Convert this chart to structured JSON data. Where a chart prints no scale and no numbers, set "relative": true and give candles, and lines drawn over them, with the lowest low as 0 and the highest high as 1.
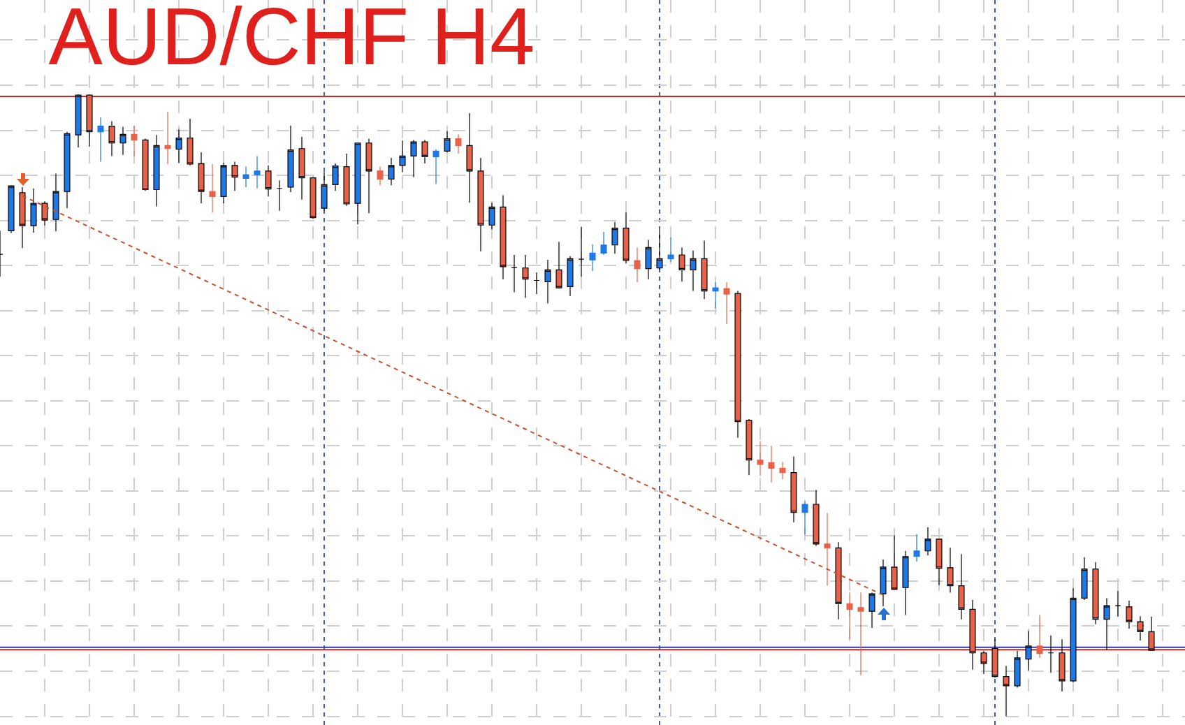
{
  "chart_data": {
    "type": "candlestick",
    "title": "AUD/CHF H4",
    "relative": true,
    "grid": true,
    "categories": [
      null,
      null,
      null,
      null,
      null,
      null,
      null,
      null,
      null,
      null,
      null,
      null,
      null,
      null,
      null,
      null,
      null,
      null,
      null,
      null,
      null,
      null,
      null,
      null,
      null,
      null,
      null,
      null,
      null,
      null,
      null,
      null,
      null,
      null,
      null,
      null,
      null,
      null,
      null,
      null,
      null,
      null,
      null,
      null,
      null,
      null,
      null,
      null,
      null,
      null,
      null,
      null,
      null,
      null,
      null,
      null,
      null,
      null,
      null,
      null,
      null,
      null,
      null,
      null,
      null,
      null,
      null,
      null,
      null,
      null,
      null,
      null,
      null,
      null,
      null,
      null,
      null,
      null,
      null,
      null,
      null,
      null,
      null,
      null,
      null,
      null,
      null,
      null,
      null,
      null,
      null,
      null,
      null,
      null,
      null,
      null,
      null,
      null,
      null,
      null,
      null,
      null,
      null,
      null
    ],
    "ohlc": [
      [
        0.743,
        0.781,
        0.707,
        0.743
      ],
      [
        0.781,
        0.854,
        0.777,
        0.853
      ],
      [
        0.842,
        0.851,
        0.753,
        0.789
      ],
      [
        0.789,
        0.849,
        0.778,
        0.825
      ],
      [
        0.825,
        0.828,
        0.789,
        0.798
      ],
      [
        0.799,
        0.873,
        0.78,
        0.844
      ],
      [
        0.844,
        0.94,
        0.817,
        0.937
      ],
      [
        0.935,
        1,
        0.915,
        0.999
      ],
      [
        0.999,
        1,
        0.916,
        0.94
      ],
      [
        0.94,
        0.963,
        0.892,
        0.949
      ],
      [
        0.949,
        0.957,
        0.901,
        0.922
      ],
      [
        0.922,
        0.948,
        0.903,
        0.936
      ],
      [
        0.936,
        0.95,
        0.901,
        0.927
      ],
      [
        0.927,
        0.929,
        0.845,
        0.847
      ],
      [
        0.847,
        0.935,
        0.82,
        0.918
      ],
      [
        0.918,
        0.972,
        0.888,
        0.913
      ],
      [
        0.912,
        0.944,
        0.89,
        0.93
      ],
      [
        0.93,
        0.961,
        0.886,
        0.888
      ],
      [
        0.889,
        0.907,
        0.825,
        0.844
      ],
      [
        0.844,
        0.888,
        0.81,
        0.836
      ],
      [
        0.836,
        0.89,
        0.825,
        0.886
      ],
      [
        0.886,
        0.892,
        0.845,
        0.867
      ],
      [
        0.865,
        0.884,
        0.851,
        0.871
      ],
      [
        0.871,
        0.901,
        0.849,
        0.877
      ],
      [
        0.877,
        0.886,
        0.836,
        0.848
      ],
      [
        0.849,
        0.862,
        0.813,
        0.849
      ],
      [
        0.851,
        0.95,
        0.843,
        0.911
      ],
      [
        0.913,
        0.932,
        0.831,
        0.866
      ],
      [
        0.866,
        0.867,
        0.8,
        0.802
      ],
      [
        0.817,
        0.875,
        0.813,
        0.855
      ],
      [
        0.855,
        0.889,
        0.845,
        0.885
      ],
      [
        0.884,
        0.905,
        0.821,
        0.824
      ],
      [
        0.825,
        0.922,
        0.791,
        0.922
      ],
      [
        0.922,
        0.929,
        0.809,
        0.877
      ],
      [
        0.877,
        0.884,
        0.854,
        0.864
      ],
      [
        0.864,
        0.898,
        0.854,
        0.886
      ],
      [
        0.886,
        0.926,
        0.875,
        0.901
      ],
      [
        0.901,
        0.927,
        0.867,
        0.924
      ],
      [
        0.924,
        0.927,
        0.889,
        0.9
      ],
      [
        0.9,
        0.912,
        0.856,
        0.909
      ],
      [
        0.909,
        0.941,
        0.907,
        0.929
      ],
      [
        0.929,
        0.936,
        0.905,
        0.918
      ],
      [
        0.918,
        0.97,
        0.826,
        0.877
      ],
      [
        0.877,
        0.898,
        0.748,
        0.79
      ],
      [
        0.79,
        0.826,
        0.783,
        0.819
      ],
      [
        0.819,
        0.838,
        0.703,
        0.723
      ],
      [
        0.722,
        0.742,
        0.682,
        0.722
      ],
      [
        0.721,
        0.742,
        0.673,
        0.703
      ],
      [
        0.701,
        0.714,
        0.679,
        0.701
      ],
      [
        0.699,
        0.734,
        0.664,
        0.718
      ],
      [
        0.718,
        0.763,
        0.688,
        0.689
      ],
      [
        0.691,
        0.74,
        0.676,
        0.736
      ],
      [
        0.735,
        0.787,
        0.707,
        0.735
      ],
      [
        0.734,
        0.759,
        0.716,
        0.745
      ],
      [
        0.745,
        0.779,
        0.742,
        0.758
      ],
      [
        0.758,
        0.795,
        0.744,
        0.785
      ],
      [
        0.785,
        0.81,
        0.729,
        0.733
      ],
      [
        0.733,
        0.754,
        0.698,
        0.72
      ],
      [
        0.72,
        0.766,
        0.703,
        0.754
      ],
      [
        0.721,
        0.781,
        0.718,
        0.736
      ],
      [
        0.736,
        0.77,
        0.731,
        0.742
      ],
      [
        0.742,
        0.754,
        0.699,
        0.718
      ],
      [
        0.718,
        0.749,
        0.684,
        0.736
      ],
      [
        0.736,
        0.765,
        0.671,
        0.684
      ],
      [
        0.684,
        0.698,
        0.656,
        0.689
      ],
      [
        0.688,
        0.698,
        0.631,
        0.679
      ],
      [
        0.68,
        0.684,
        0.448,
        0.474
      ],
      [
        0.476,
        0.478,
        0.388,
        0.412
      ],
      [
        0.412,
        0.442,
        0.387,
        0.405
      ],
      [
        0.408,
        0.435,
        0.376,
        0.399
      ],
      [
        0.399,
        0.409,
        0.381,
        0.392
      ],
      [
        0.392,
        0.418,
        0.312,
        0.328
      ],
      [
        0.328,
        0.347,
        0.292,
        0.341
      ],
      [
        0.341,
        0.364,
        0.274,
        0.277
      ],
      [
        0.277,
        0.327,
        0.21,
        0.271
      ],
      [
        0.271,
        0.28,
        0.156,
        0.181
      ],
      [
        0.181,
        0.199,
        0.124,
        0.172
      ],
      [
        0.175,
        0.199,
        0.066,
        0.169
      ],
      [
        0.169,
        0.199,
        0.142,
        0.197
      ],
      [
        0.197,
        0.252,
        0.177,
        0.24
      ],
      [
        0.24,
        0.291,
        0.204,
        0.204
      ],
      [
        0.207,
        0.266,
        0.163,
        0.257
      ],
      [
        0.257,
        0.293,
        0.249,
        0.266
      ],
      [
        0.266,
        0.304,
        0.259,
        0.285
      ],
      [
        0.285,
        0.285,
        0.211,
        0.238
      ],
      [
        0.239,
        0.271,
        0.199,
        0.21
      ],
      [
        0.21,
        0.261,
        0.156,
        0.172
      ],
      [
        0.172,
        0.187,
        0.075,
        0.102
      ],
      [
        0.102,
        0.105,
        0.068,
        0.085
      ],
      [
        0.109,
        0.124,
        0.062,
        0.064
      ],
      [
        0.064,
        0.081,
        0,
        0.049
      ],
      [
        0.049,
        0.105,
        0.046,
        0.094
      ],
      [
        0.092,
        0.137,
        0.073,
        0.113
      ],
      [
        0.113,
        0.163,
        0.094,
        0.101
      ],
      [
        0.102,
        0.13,
        0.07,
        0.102
      ],
      [
        0.102,
        0.124,
        0.04,
        0.057
      ],
      [
        0.057,
        0.206,
        0.055,
        0.19
      ],
      [
        0.19,
        0.256,
        0.187,
        0.237
      ],
      [
        0.237,
        0.248,
        0.148,
        0.156
      ],
      [
        0.156,
        0.19,
        0.107,
        0.178
      ],
      [
        0.178,
        0.202,
        0.16,
        0.178
      ],
      [
        0.176,
        0.186,
        0.141,
        0.152
      ],
      [
        0.152,
        0.161,
        0.122,
        0.136
      ],
      [
        0.136,
        0.16,
        0.106,
        0.106
      ]
    ],
    "colors": [
      "#000000",
      "#1e78e6",
      "#e8624a",
      "#1e78e6",
      "#e8624a",
      "#1e78e6",
      "#1e78e6",
      "#1e78e6",
      "#e8624a",
      "#1e78e6",
      "#e8624a",
      "#1e78e6",
      "#e8624a",
      "#e8624a",
      "#1e78e6",
      "#e8624a",
      "#1e78e6",
      "#e8624a",
      "#e8624a",
      "#e8624a",
      "#1e78e6",
      "#e8624a",
      "#1e78e6",
      "#1e78e6",
      "#e8624a",
      "#000000",
      "#1e78e6",
      "#e8624a",
      "#e8624a",
      "#1e78e6",
      "#1e78e6",
      "#e8624a",
      "#1e78e6",
      "#e8624a",
      "#e8624a",
      "#1e78e6",
      "#1e78e6",
      "#1e78e6",
      "#e8624a",
      "#1e78e6",
      "#1e78e6",
      "#e8624a",
      "#e8624a",
      "#e8624a",
      "#1e78e6",
      "#e8624a",
      "#000000",
      "#e8624a",
      "#000000",
      "#1e78e6",
      "#e8624a",
      "#1e78e6",
      "#000000",
      "#1e78e6",
      "#1e78e6",
      "#1e78e6",
      "#e8624a",
      "#e8624a",
      "#1e78e6",
      "#1e78e6",
      "#1e78e6",
      "#e8624a",
      "#1e78e6",
      "#e8624a",
      "#1e78e6",
      "#e8624a",
      "#e8624a",
      "#e8624a",
      "#e8624a",
      "#e8624a",
      "#e8624a",
      "#e8624a",
      "#1e78e6",
      "#e8624a",
      "#e8624a",
      "#e8624a",
      "#e8624a",
      "#e8624a",
      "#1e78e6",
      "#1e78e6",
      "#e8624a",
      "#1e78e6",
      "#1e78e6",
      "#1e78e6",
      "#e8624a",
      "#e8624a",
      "#e8624a",
      "#e8624a",
      "#e8624a",
      "#e8624a",
      "#e8624a",
      "#1e78e6",
      "#1e78e6",
      "#e8624a",
      "#000000",
      "#e8624a",
      "#1e78e6",
      "#1e78e6",
      "#e8624a",
      "#1e78e6",
      "#000000",
      "#e8624a",
      "#e8624a",
      "#e8624a"
    ],
    "series": [
      {
        "type": "line",
        "color": "#c8502a",
        "line_style": "dashed",
        "values": [
          null,
          null,
          0.837,
          null,
          null,
          null,
          null,
          null,
          null,
          null,
          null,
          null,
          null,
          null,
          null,
          null,
          null,
          null,
          null,
          null,
          null,
          null,
          null,
          null,
          null,
          null,
          null,
          null,
          null,
          null,
          null,
          null,
          null,
          null,
          null,
          null,
          null,
          null,
          null,
          null,
          null,
          null,
          null,
          null,
          null,
          null,
          null,
          null,
          null,
          null,
          null,
          null,
          null,
          null,
          null,
          null,
          null,
          null,
          null,
          null,
          null,
          null,
          null,
          null,
          null,
          null,
          null,
          null,
          null,
          null,
          null,
          null,
          null,
          null,
          null,
          null,
          null,
          null,
          null,
          0.195,
          null,
          null,
          null,
          null,
          null,
          null,
          null,
          null,
          null,
          null,
          null,
          null,
          null,
          null,
          null,
          null,
          null,
          null,
          null,
          null,
          null,
          null,
          null,
          null
        ]
      }
    ],
    "ref_lines": [
      {
        "axis": "y",
        "value": 0.997,
        "color": "#c42a22"
      },
      {
        "axis": "y",
        "value": 0.111,
        "color": "#3434a8"
      },
      {
        "axis": "y",
        "value": 0.107,
        "color": "#c42a22"
      }
    ]
  }
}
